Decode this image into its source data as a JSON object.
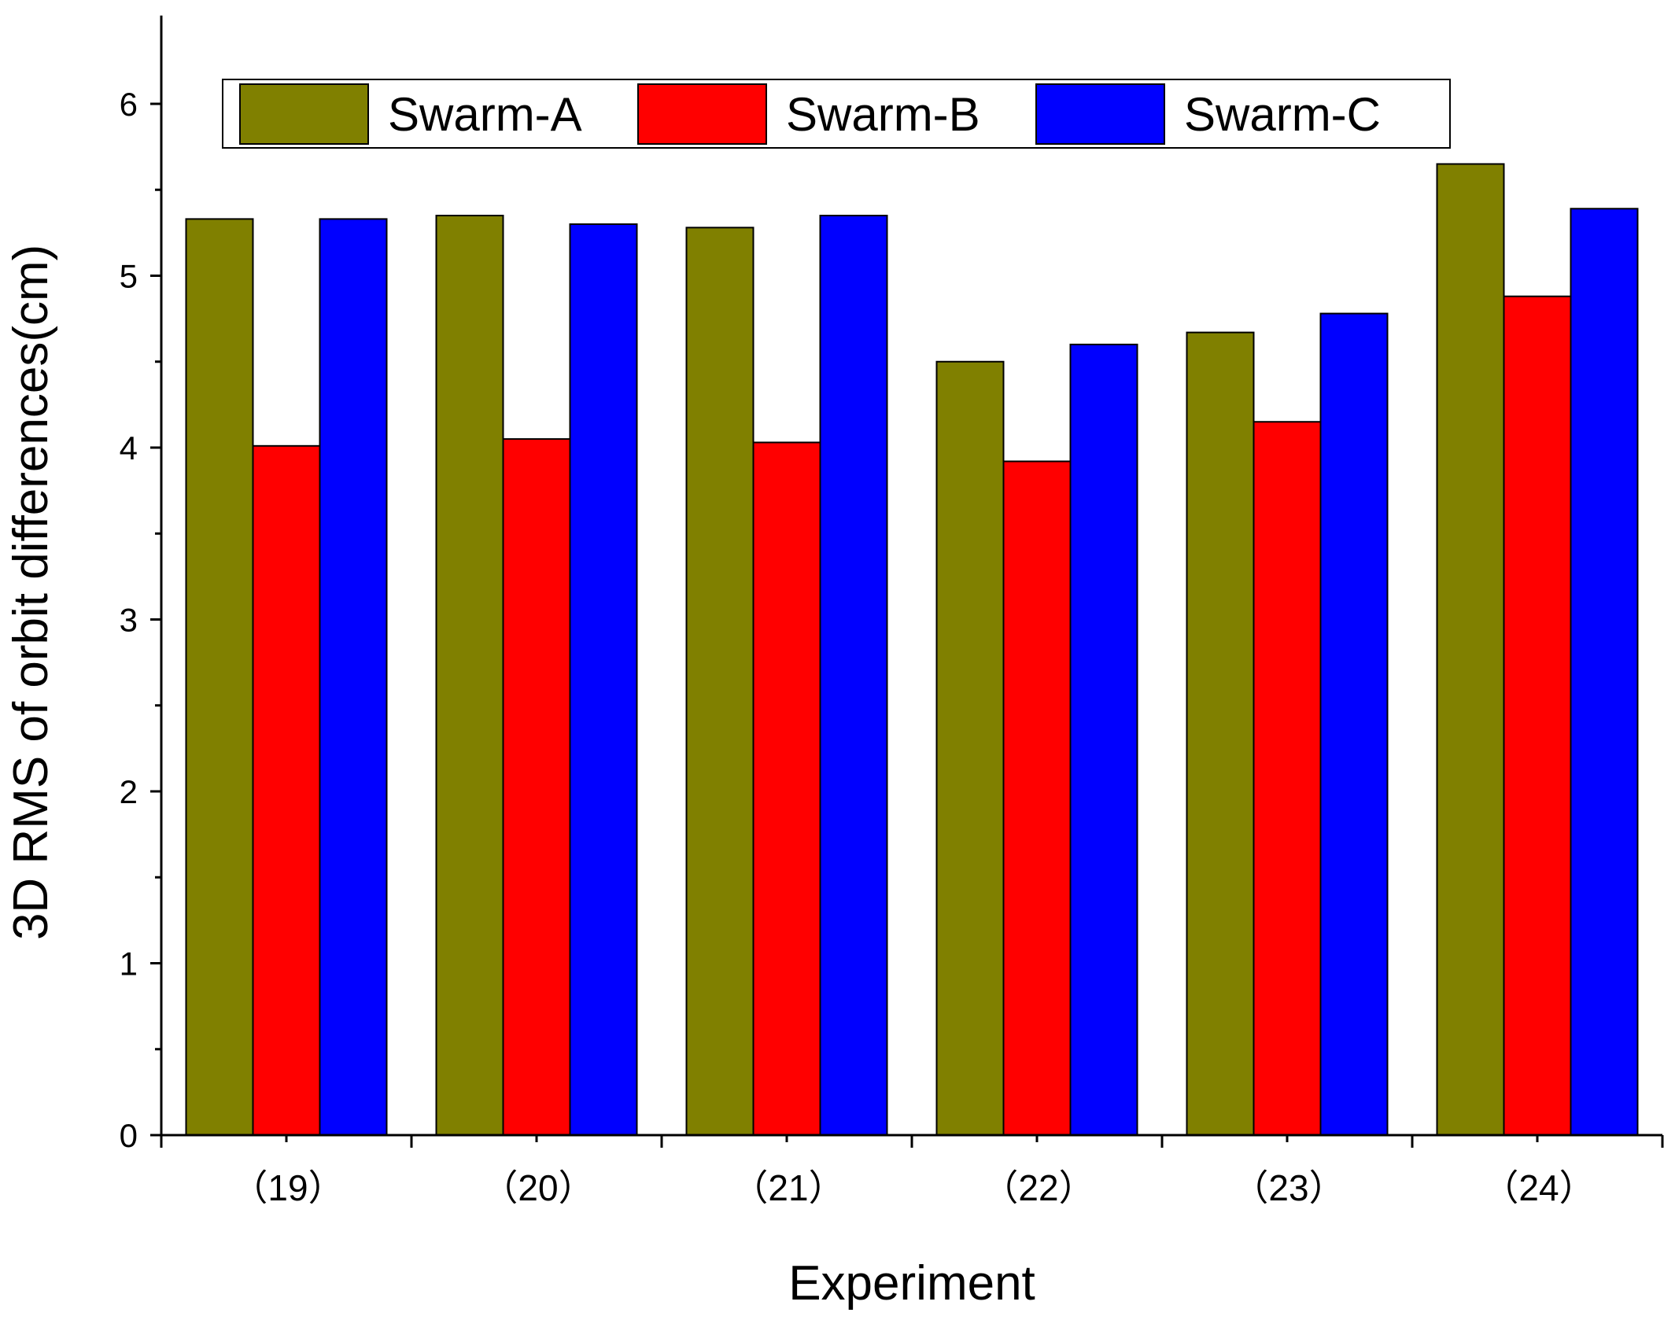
{
  "chart_data": {
    "type": "bar",
    "title": "",
    "xlabel": "Experiment",
    "ylabel": "3D RMS of orbit differences(cm)",
    "categories": [
      "（19）",
      "（20）",
      "（21）",
      "（22）",
      "（23）",
      "（24）"
    ],
    "series": [
      {
        "name": "Swarm-A",
        "color": "#808000",
        "values": [
          5.33,
          5.35,
          5.28,
          4.5,
          4.67,
          5.65
        ]
      },
      {
        "name": "Swarm-B",
        "color": "#ff0000",
        "values": [
          4.01,
          4.05,
          4.03,
          3.92,
          4.15,
          4.88
        ]
      },
      {
        "name": "Swarm-C",
        "color": "#0000ff",
        "values": [
          5.33,
          5.3,
          5.35,
          4.6,
          4.78,
          5.39
        ]
      }
    ],
    "ylim": [
      0,
      6.5
    ],
    "yticks": [
      "0",
      "1",
      "2",
      "3",
      "4",
      "5",
      "6"
    ],
    "grid": false,
    "legend_position": "top"
  }
}
